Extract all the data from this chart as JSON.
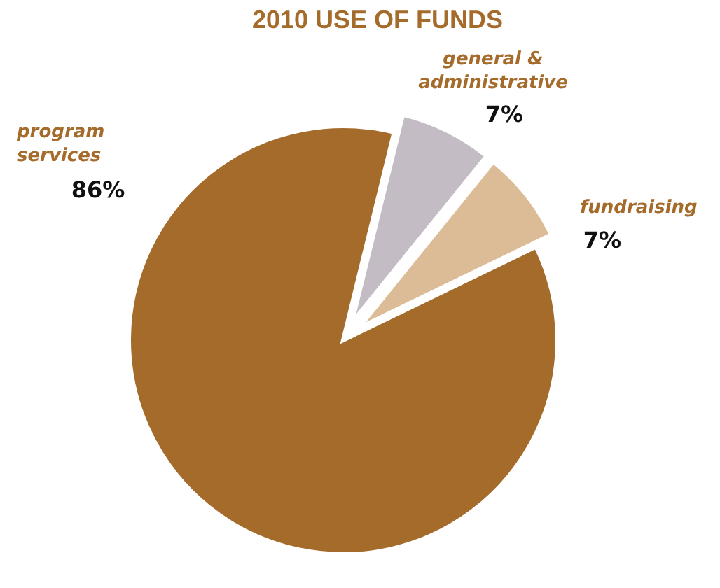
{
  "chart_data": {
    "type": "pie",
    "title": "2010 USE OF FUNDS",
    "categories": [
      "general &\nadministrative",
      "fundraising",
      "program\nservices"
    ],
    "values": [
      7,
      7,
      86
    ],
    "value_labels": [
      "7%",
      "7%",
      "86%"
    ],
    "colors": [
      "#c3bcc4",
      "#dcbc96",
      "#a56b2b"
    ]
  }
}
